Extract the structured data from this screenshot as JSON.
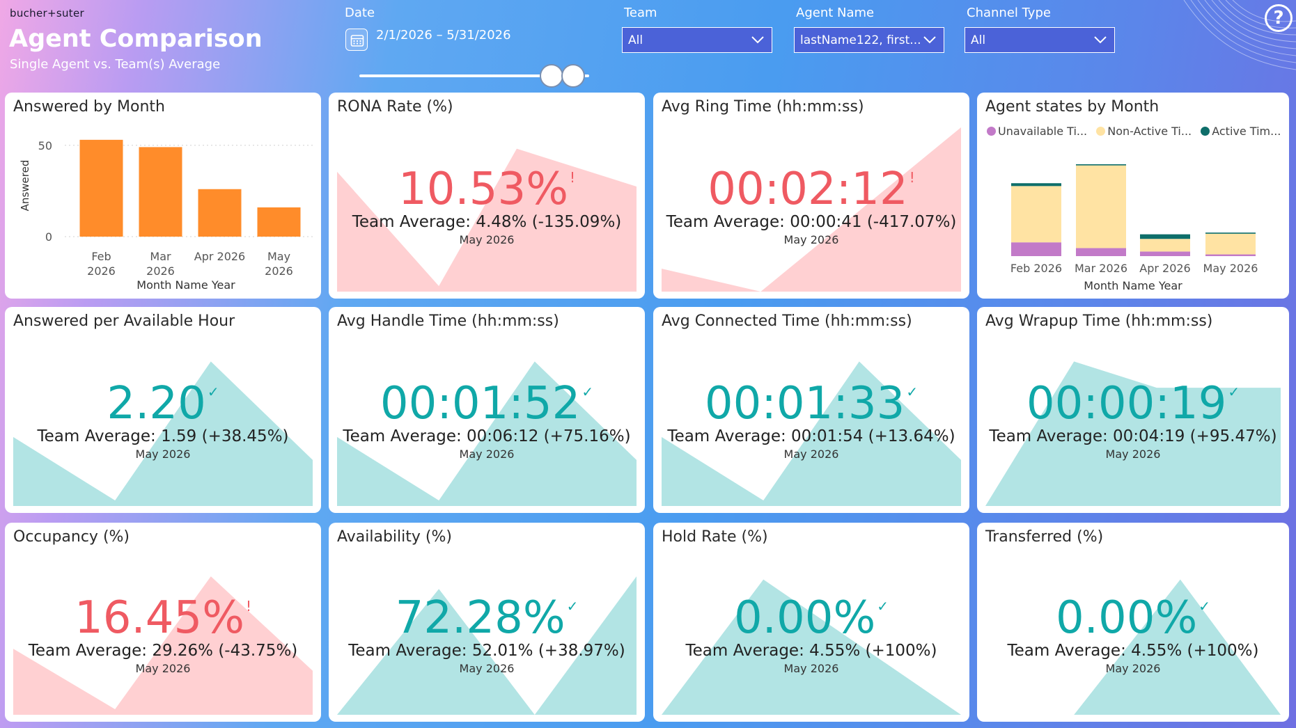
{
  "header": {
    "brand": "bucher+suter",
    "title": "Agent Comparison",
    "subtitle": "Single Agent vs. Team(s) Average"
  },
  "filters": {
    "date": {
      "label": "Date",
      "value": "2/1/2026 – 5/31/2026"
    },
    "team": {
      "label": "Team",
      "value": "All"
    },
    "agent": {
      "label": "Agent Name",
      "value": "lastName122, first..."
    },
    "channel": {
      "label": "Channel Type",
      "value": "All"
    }
  },
  "icons": {
    "help": "help-icon",
    "calendar": "calendar-icon",
    "dropdown": "chevron-down-icon"
  },
  "colors": {
    "bad": "#ef5a62",
    "good": "#10a8a8",
    "bad_fill": "#ffd0d2",
    "good_fill": "#b2e4e4",
    "bar": "#ff8c2a",
    "unavailable": "#c27ac8",
    "non_active": "#ffe3a3",
    "active": "#0e6e6a"
  },
  "kpis": [
    {
      "title": "RONA Rate (%)",
      "value": "10.53%",
      "mark": "!",
      "status": "bad",
      "team": "Team Average: 4.48% (-135.09%)",
      "period": "May 2026"
    },
    {
      "title": "Avg Ring Time (hh:mm:ss)",
      "value": "00:02:12",
      "mark": "!",
      "status": "bad",
      "team": "Team Average: 00:00:41 (-417.07%)",
      "period": "May 2026"
    },
    {
      "title": "Answered per Available Hour",
      "value": "2.20",
      "mark": "✓",
      "status": "good",
      "team": "Team Average: 1.59 (+38.45%)",
      "period": "May 2026"
    },
    {
      "title": "Avg Handle Time (hh:mm:ss)",
      "value": "00:01:52",
      "mark": "✓",
      "status": "good",
      "team": "Team Average: 00:06:12 (+75.16%)",
      "period": "May 2026"
    },
    {
      "title": "Avg Connected Time (hh:mm:ss)",
      "value": "00:01:33",
      "mark": "✓",
      "status": "good",
      "team": "Team Average: 00:01:54 (+13.64%)",
      "period": "May 2026"
    },
    {
      "title": "Avg Wrapup Time (hh:mm:ss)",
      "value": "00:00:19",
      "mark": "✓",
      "status": "good",
      "team": "Team Average: 00:04:19 (+95.47%)",
      "period": "May 2026"
    },
    {
      "title": "Occupancy (%)",
      "value": "16.45%",
      "mark": "!",
      "status": "bad",
      "team": "Team Average: 29.26% (-43.75%)",
      "period": "May 2026"
    },
    {
      "title": "Availability (%)",
      "value": "72.28%",
      "mark": "✓",
      "status": "good",
      "team": "Team Average: 52.01% (+38.97%)",
      "period": "May 2026"
    },
    {
      "title": "Hold Rate (%)",
      "value": "0.00%",
      "mark": "✓",
      "status": "good",
      "team": "Team Average: 4.55% (+100%)",
      "period": "May 2026"
    },
    {
      "title": "Transferred (%)",
      "value": "0.00%",
      "mark": "✓",
      "status": "good",
      "team": "Team Average: 4.55% (+100%)",
      "period": "May 2026"
    }
  ],
  "chart_data": [
    {
      "type": "bar",
      "title": "Answered by Month",
      "categories": [
        "Feb 2026",
        "Mar 2026",
        "Apr 2026",
        "May 2026"
      ],
      "values": [
        53,
        49,
        26,
        16
      ],
      "xlabel": "Month Name Year",
      "ylabel": "Answered",
      "yticks": [
        0,
        50
      ],
      "ylim": [
        0,
        56
      ],
      "grid": true
    },
    {
      "type": "bar",
      "stacked": true,
      "title": "Agent states by Month",
      "categories": [
        "Feb 2026",
        "Mar 2026",
        "Apr 2026",
        "May 2026"
      ],
      "xlabel": "Month Name Year",
      "legend": "top",
      "series": [
        {
          "name": "Unavailable Ti...",
          "values": [
            0.12,
            0.07,
            0.04,
            0.015
          ]
        },
        {
          "name": "Non-Active Ti...",
          "values": [
            0.49,
            0.72,
            0.11,
            0.18
          ]
        },
        {
          "name": "Active Tim...",
          "values": [
            0.025,
            0.01,
            0.04,
            0.01
          ]
        }
      ],
      "ylim": [
        0,
        1
      ]
    }
  ]
}
